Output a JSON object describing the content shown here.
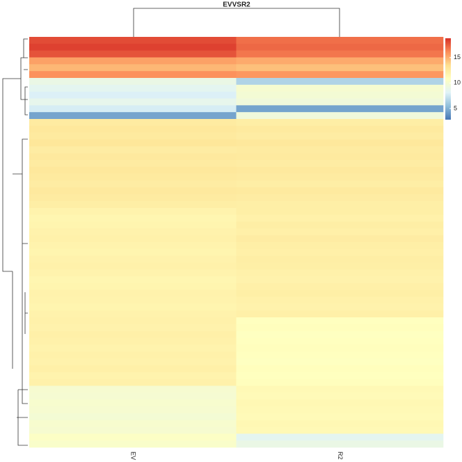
{
  "chart_data": {
    "type": "heatmap",
    "title": "EVVSR2",
    "columns": [
      "EV",
      "R2"
    ],
    "values": [
      [
        18,
        17
      ],
      [
        18.3,
        17.2
      ],
      [
        17.8,
        16.8
      ],
      [
        15.5,
        15.2
      ],
      [
        14.8,
        14.5
      ],
      [
        16,
        15.8
      ],
      [
        9,
        6.5
      ],
      [
        8.5,
        10
      ],
      [
        8,
        9.8
      ],
      [
        8.7,
        9.5
      ],
      [
        7.8,
        4.5
      ],
      [
        4.5,
        9.5
      ],
      [
        12.5,
        12.3
      ],
      [
        12.8,
        12.6
      ],
      [
        12.6,
        12.4
      ],
      [
        12.9,
        12.8
      ],
      [
        12.4,
        12.5
      ],
      [
        12.7,
        12.6
      ],
      [
        12.5,
        12.4
      ],
      [
        12.8,
        12.7
      ],
      [
        12.6,
        12.5
      ],
      [
        12.4,
        12.3
      ],
      [
        12.7,
        12.6
      ],
      [
        12.5,
        12.4
      ],
      [
        12.3,
        12.2
      ],
      [
        11.8,
        12.2
      ],
      [
        11.6,
        12.0
      ],
      [
        11.7,
        12.3
      ],
      [
        11.9,
        12.1
      ],
      [
        12.0,
        12.4
      ],
      [
        11.8,
        12.2
      ],
      [
        11.7,
        12.1
      ],
      [
        11.9,
        12.3
      ],
      [
        12.0,
        12.2
      ],
      [
        11.8,
        12.0
      ],
      [
        11.6,
        11.9
      ],
      [
        11.7,
        12.1
      ],
      [
        11.9,
        12.2
      ],
      [
        11.8,
        12.0
      ],
      [
        11.7,
        11.9
      ],
      [
        11.9,
        12.1
      ],
      [
        12.0,
        10.8
      ],
      [
        11.9,
        10.9
      ],
      [
        12.1,
        10.7
      ],
      [
        12.0,
        10.8
      ],
      [
        11.8,
        10.9
      ],
      [
        12.0,
        10.8
      ],
      [
        11.9,
        10.7
      ],
      [
        12.1,
        10.9
      ],
      [
        11.8,
        10.8
      ],
      [
        12.0,
        10.9
      ],
      [
        10,
        11.3
      ],
      [
        9.9,
        11.2
      ],
      [
        10.1,
        11.4
      ],
      [
        10,
        11.3
      ],
      [
        9.8,
        11.2
      ],
      [
        10.1,
        11.4
      ],
      [
        10,
        11.3
      ],
      [
        10.5,
        8.5
      ],
      [
        10.3,
        9
      ]
    ],
    "colors": [
      "#4575b4",
      "#91bfdb",
      "#e0f3f8",
      "#ffffbf",
      "#fee090",
      "#fc8d59",
      "#d73027"
    ],
    "colorlim": [
      2.8,
      18.8
    ],
    "colorticks": [
      5,
      10,
      15
    ]
  }
}
